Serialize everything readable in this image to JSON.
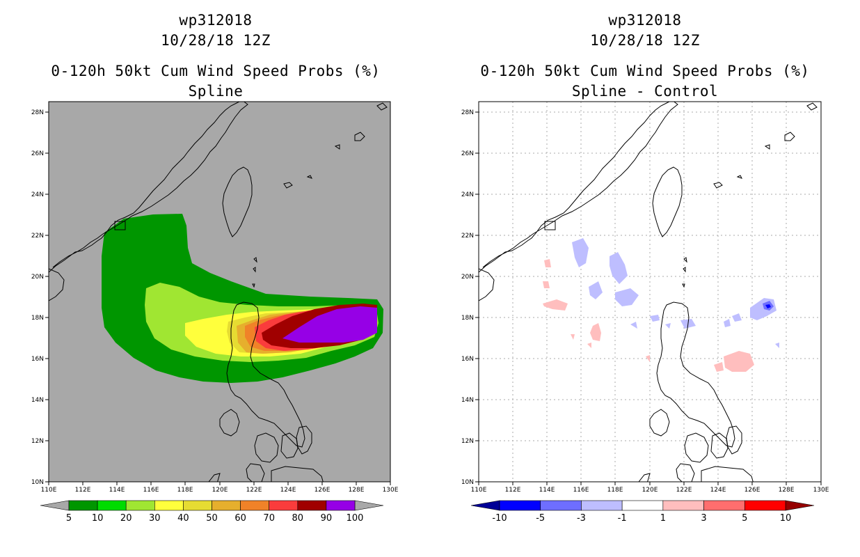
{
  "panels": [
    {
      "storm_id": "wp312018",
      "datetime": "10/28/18 12Z",
      "product": "0-120h 50kt Cum Wind Speed Probs (%)",
      "subtitle": "Spline",
      "x_ticks": [
        "110E",
        "112E",
        "114E",
        "116E",
        "118E",
        "120E",
        "122E",
        "124E",
        "126E",
        "128E",
        "130E"
      ],
      "y_ticks": [
        "10N",
        "12N",
        "14N",
        "16N",
        "18N",
        "20N",
        "22N",
        "24N",
        "26N",
        "28N"
      ],
      "colorbar": {
        "labels": [
          "5",
          "10",
          "20",
          "30",
          "40",
          "50",
          "60",
          "70",
          "80",
          "90",
          "100"
        ],
        "colors": [
          "#009600",
          "#00dc00",
          "#a0e632",
          "#ffff3c",
          "#e6dc32",
          "#e6af2d",
          "#f08228",
          "#fa3c3c",
          "#a00000",
          "#9600e6"
        ],
        "under_color": "#a8a8a8",
        "over_color": "#a8a8a8"
      },
      "background": "#a8a8a8"
    },
    {
      "storm_id": "wp312018",
      "datetime": "10/28/18 12Z",
      "product": "0-120h 50kt Cum Wind Speed Probs (%)",
      "subtitle": "Spline - Control",
      "x_ticks": [
        "110E",
        "112E",
        "114E",
        "116E",
        "118E",
        "120E",
        "122E",
        "124E",
        "126E",
        "128E",
        "130E"
      ],
      "y_ticks": [
        "10N",
        "12N",
        "14N",
        "16N",
        "18N",
        "20N",
        "22N",
        "24N",
        "26N",
        "28N"
      ],
      "colorbar": {
        "labels": [
          "-10",
          "-5",
          "-3",
          "-1",
          "1",
          "3",
          "5",
          "10"
        ],
        "colors": [
          "#0000ff",
          "#6e6eff",
          "#bebeff",
          "#ffffff",
          "#ffbebe",
          "#ff6e6e",
          "#ff0000"
        ],
        "under_color": "#000096",
        "over_color": "#960000"
      },
      "background": "#ffffff"
    }
  ]
}
